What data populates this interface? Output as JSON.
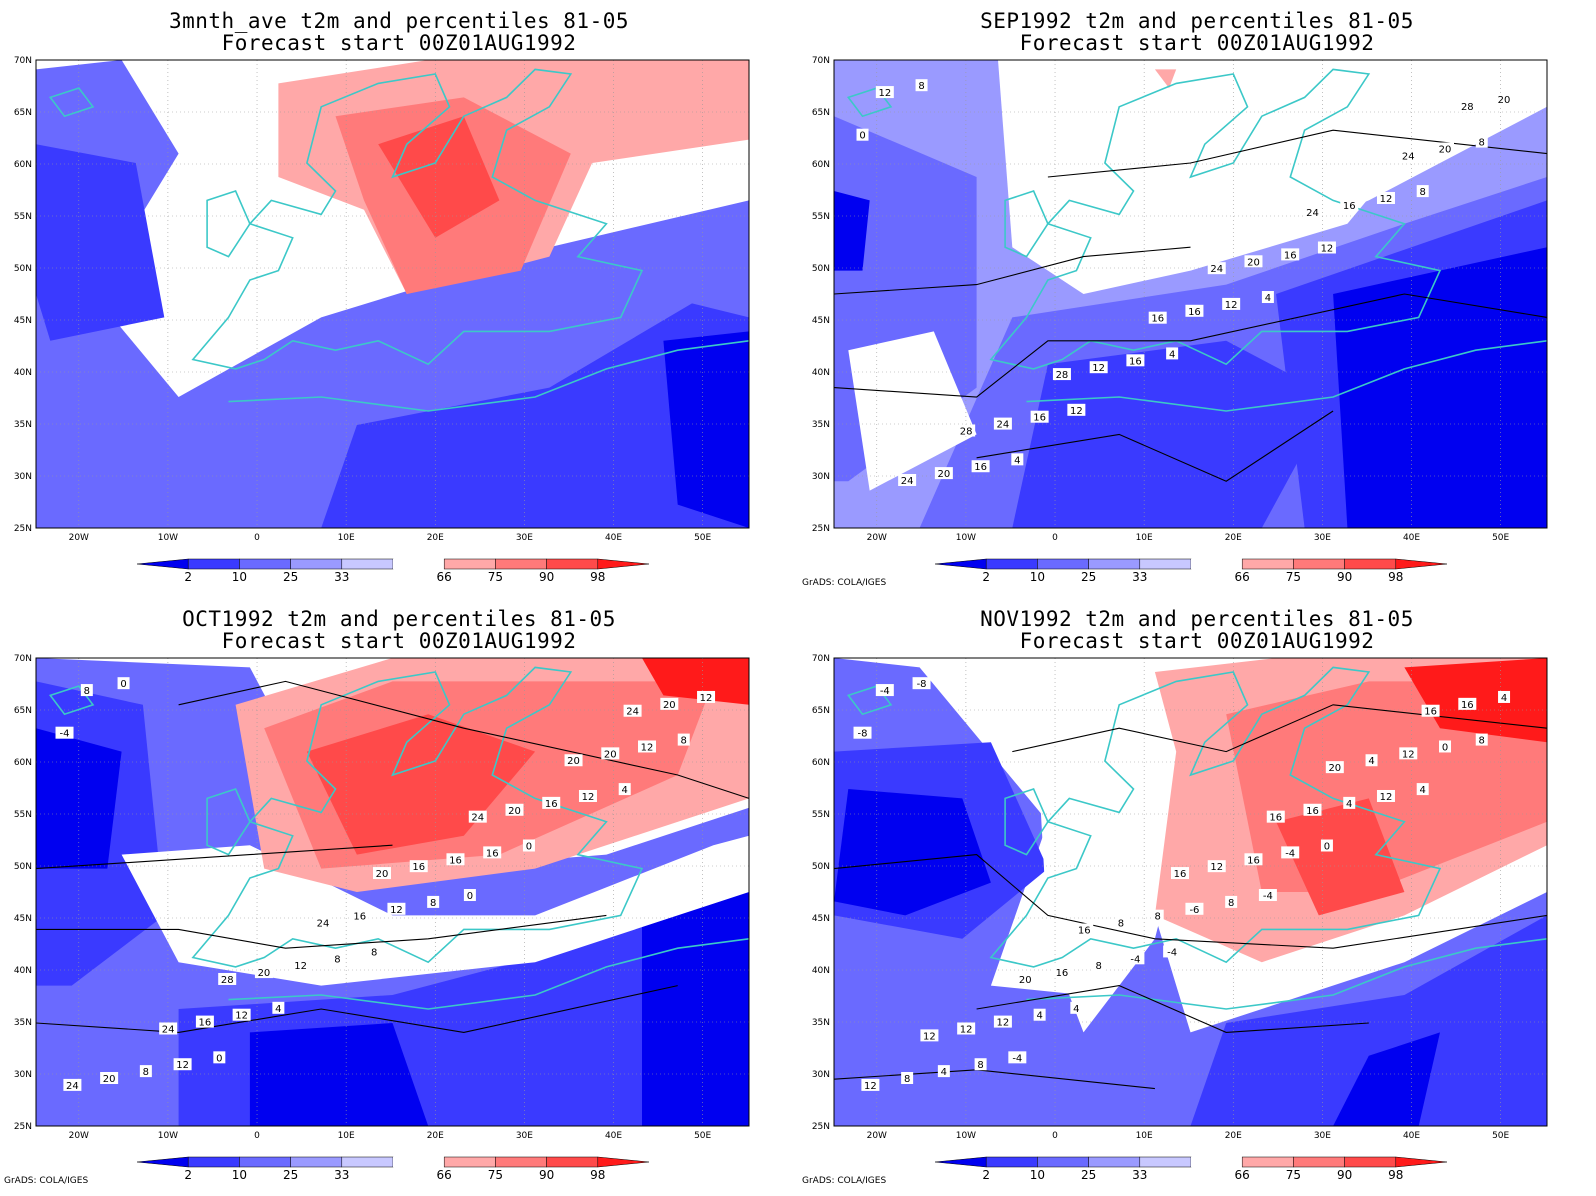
{
  "credit": "GrADS: COLA/IGES",
  "axes": {
    "lat_labels": [
      "70N",
      "65N",
      "60N",
      "55N",
      "50N",
      "45N",
      "40N",
      "35N",
      "30N",
      "25N"
    ],
    "lon_labels": [
      "20W",
      "10W",
      "0",
      "10E",
      "20E",
      "30E",
      "40E",
      "50E"
    ]
  },
  "colorbar": {
    "labels": [
      "2",
      "10",
      "25",
      "33",
      "66",
      "75",
      "90",
      "98"
    ],
    "colors": [
      "#0000f0",
      "#3a3aff",
      "#6a6aff",
      "#9a9aff",
      "#c8c8ff",
      "#ffffff",
      "#ffa8a8",
      "#ff7a7a",
      "#ff4a4a",
      "#ff1a1a"
    ]
  },
  "colors": {
    "coast": "#3cc8c8",
    "contour": "#000000",
    "grid": "#9a9a9a"
  },
  "panels": [
    {
      "title_line1": "3mnth_ave t2m and percentiles 81-05",
      "title_line2": "Forecast start 00Z01AUG1992",
      "contour_labels": [],
      "show_credit": false
    },
    {
      "title_line1": "SEP1992 t2m and percentiles 81-05",
      "title_line2": "Forecast start 00Z01AUG1992",
      "contour_labels": [
        "0",
        "4",
        "4",
        "8",
        "4",
        "8",
        "12",
        "12",
        "8",
        "12",
        "16",
        "12",
        "16",
        "12",
        "16",
        "16",
        "20",
        "16",
        "20",
        "16",
        "12",
        "20",
        "20",
        "24",
        "24",
        "16",
        "24",
        "24",
        "28",
        "28",
        "24",
        "28"
      ],
      "show_credit": true
    },
    {
      "title_line1": "OCT1992 t2m and percentiles 81-05",
      "title_line2": "Forecast start 00Z01AUG1992",
      "contour_labels": [
        "-4",
        "0",
        "0",
        "4",
        "8",
        "0",
        "0",
        "4",
        "8",
        "8",
        "12",
        "12",
        "8",
        "8",
        "16",
        "12",
        "12",
        "12",
        "8",
        "16",
        "12",
        "12",
        "16",
        "16",
        "20",
        "16",
        "20",
        "20",
        "20",
        "20",
        "16",
        "24",
        "20",
        "24",
        "24",
        "24",
        "28",
        "24",
        "20"
      ],
      "show_credit": true
    },
    {
      "title_line1": "NOV1992 t2m and percentiles 81-05",
      "title_line2": "Forecast start 00Z01AUG1992",
      "contour_labels": [
        "-8",
        "-4",
        "-4",
        "4",
        "-4",
        "-8",
        "0",
        "4",
        "8",
        "8",
        "8",
        "12",
        "-4",
        "-4",
        "-4",
        "4",
        "0",
        "-6",
        "4",
        "4",
        "8",
        "4",
        "16",
        "12",
        "12",
        "8",
        "8",
        "16",
        "16",
        "16",
        "12",
        "12",
        "4",
        "8",
        "12",
        "16",
        "20",
        "16",
        "16",
        "12",
        "20",
        "16"
      ],
      "show_credit": true
    }
  ]
}
